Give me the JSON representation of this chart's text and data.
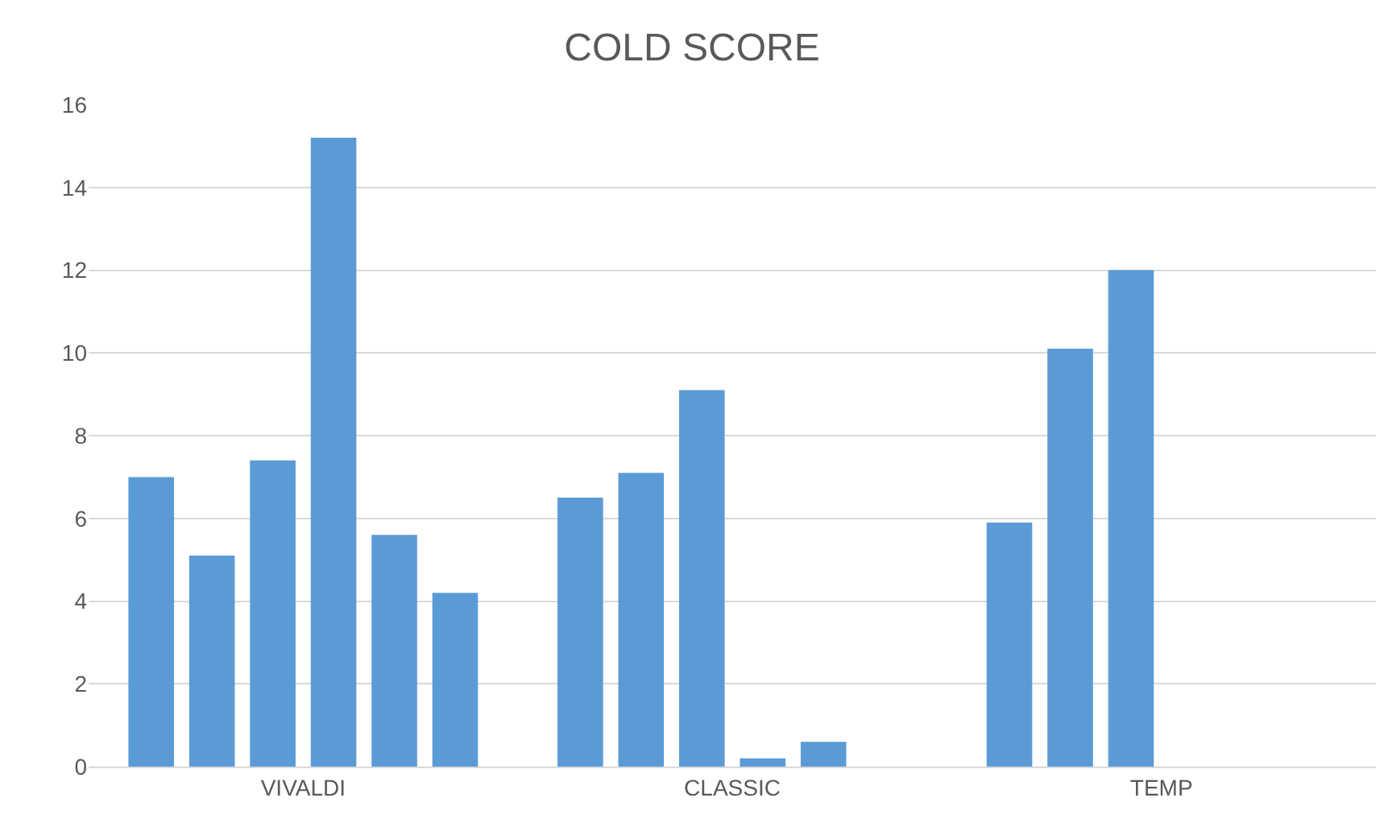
{
  "chart_data": {
    "type": "bar",
    "title": "COLD SCORE",
    "categories": [
      "VIVALDI",
      "CLASSIC",
      "TEMP"
    ],
    "series": [
      {
        "color": "#5b9bd5",
        "values": [
          7.0,
          6.5,
          5.9
        ]
      },
      {
        "color": "#5b9bd5",
        "values": [
          5.1,
          7.1,
          10.1
        ]
      },
      {
        "color": "#5b9bd5",
        "values": [
          7.4,
          9.1,
          12.0
        ]
      },
      {
        "color": "#5b9bd5",
        "values": [
          15.2,
          0.2,
          null
        ]
      },
      {
        "color": "#5b9bd5",
        "values": [
          5.6,
          0.6,
          null
        ]
      },
      {
        "color": "#5b9bd5",
        "values": [
          4.2,
          null,
          null
        ]
      }
    ],
    "ylim": [
      0,
      16
    ],
    "yticks": [
      0,
      2,
      4,
      6,
      8,
      10,
      12,
      14,
      16
    ],
    "grid": "y"
  }
}
